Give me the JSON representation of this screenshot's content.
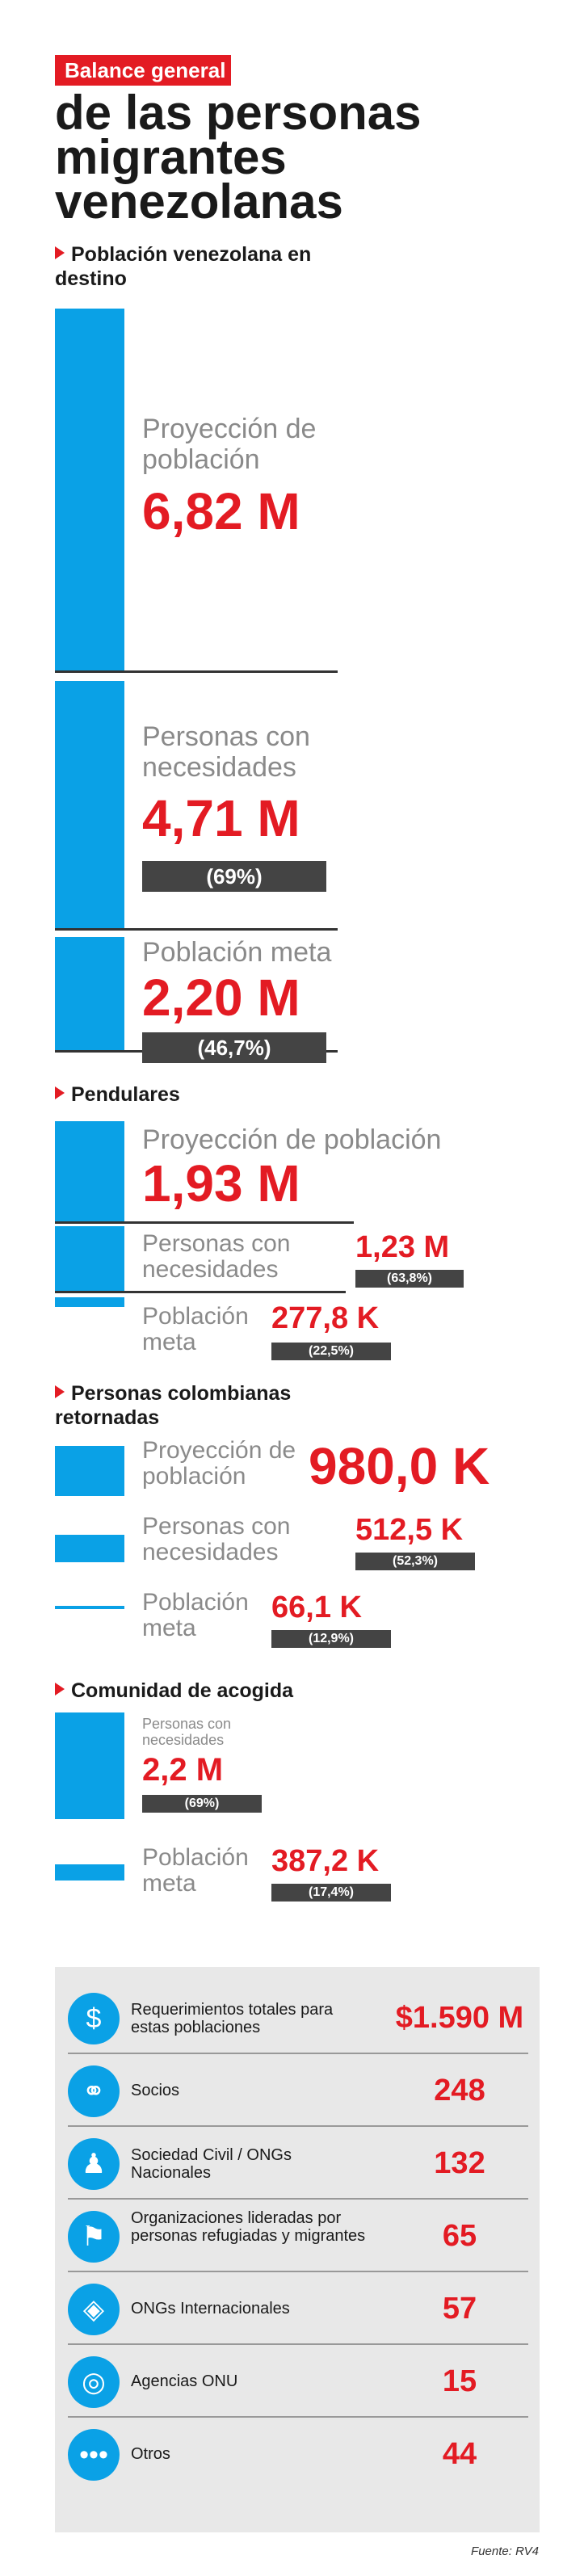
{
  "header": {
    "tag": "Balance general",
    "title": "de las personas migrantes venezolanas"
  },
  "sec1": {
    "title": "Población venezolana en destino",
    "proy_label": "Proyección de población",
    "proy_value": "6,82 M",
    "nec_label": "Personas con necesidades",
    "nec_value": "4,71 M",
    "nec_pct": "(69%)",
    "meta_label": "Población meta",
    "meta_value": "2,20 M",
    "meta_pct": "(46,7%)"
  },
  "sec2": {
    "title": "Pendulares",
    "proy_label": "Proyección de población",
    "proy_value": "1,93 M",
    "nec_label": "Personas con necesidades",
    "nec_value": "1,23 M",
    "nec_pct": "(63,8%)",
    "meta_label": "Población meta",
    "meta_value": "277,8 K",
    "meta_pct": "(22,5%)"
  },
  "sec3": {
    "title": "Personas colombianas retornadas",
    "proy_label": "Proyección de población",
    "proy_value": "980,0 K",
    "nec_label": "Personas con necesidades",
    "nec_value": "512,5 K",
    "nec_pct": "(52,3%)",
    "meta_label": "Población meta",
    "meta_value": "66,1 K",
    "meta_pct": "(12,9%)"
  },
  "sec4": {
    "title": "Comunidad de acogida",
    "nec_label": "Personas con necesidades",
    "nec_value": "2,2 M",
    "nec_pct": "(69%)",
    "meta_label": "Población meta",
    "meta_value": "387,2 K",
    "meta_pct": "(17,4%)"
  },
  "summary": [
    {
      "icon": "money-icon",
      "label": "Requerimientos totales para estas poblaciones",
      "value": "$1.590 M"
    },
    {
      "icon": "partners-icon",
      "label": "Socios",
      "value": "248"
    },
    {
      "icon": "civil-society-icon",
      "label": "Sociedad Civil / ONGs Nacionales",
      "value": "132"
    },
    {
      "icon": "refugee-led-icon",
      "label": "Organizaciones lideradas por personas refugiadas y migrantes",
      "value": "65"
    },
    {
      "icon": "globe-network-icon",
      "label": "ONGs Internacionales",
      "value": "57"
    },
    {
      "icon": "globe-icon",
      "label": "Agencias ONU",
      "value": "15"
    },
    {
      "icon": "dots-icon",
      "label": "Otros",
      "value": "44"
    }
  ],
  "footer": {
    "source": "Fuente: RV4"
  },
  "colors": {
    "accent": "#e31b23",
    "bar": "#0aa1e6",
    "dark": "#444444"
  }
}
